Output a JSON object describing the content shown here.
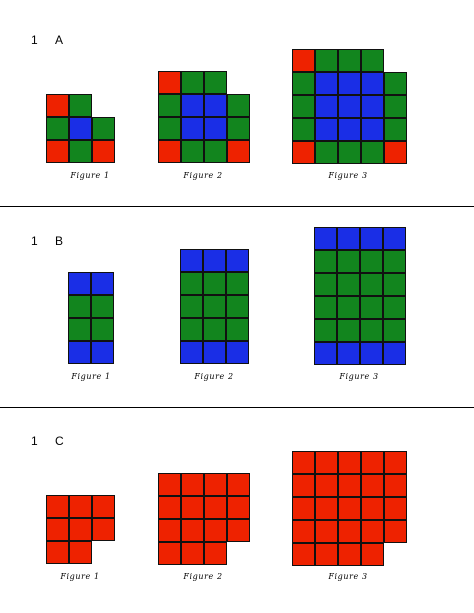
{
  "colors": {
    "R": "#ee2200",
    "G": "#12851e",
    "B": "#1a2ee6"
  },
  "sections": [
    {
      "number": "1",
      "letter": "A",
      "figures": [
        {
          "caption": "Figure 1",
          "rows": [
            "RG.",
            "GBG",
            "RGR"
          ]
        },
        {
          "caption": "Figure 2",
          "rows": [
            "RGG.",
            "GBBG",
            "GBBG",
            "RGGR"
          ]
        },
        {
          "caption": "Figure 3",
          "rows": [
            "RGGG.",
            "GBBBG",
            "GBBBG",
            "GBBBG",
            "RGGGR"
          ]
        }
      ]
    },
    {
      "number": "1",
      "letter": "B",
      "figures": [
        {
          "caption": "Figure 1",
          "rows": [
            "BB",
            "GG",
            "GG",
            "BB"
          ]
        },
        {
          "caption": "Figure 2",
          "rows": [
            "BBB",
            "GGG",
            "GGG",
            "GGG",
            "BBB"
          ]
        },
        {
          "caption": "Figure 3",
          "rows": [
            "BBBB",
            "GGGG",
            "GGGG",
            "GGGG",
            "GGGG",
            "BBBB"
          ]
        }
      ]
    },
    {
      "number": "1",
      "letter": "C",
      "figures": [
        {
          "caption": "Figure 1",
          "rows": [
            "RRR",
            "RRR",
            "RR."
          ]
        },
        {
          "caption": "Figure 2",
          "rows": [
            "RRRR",
            "RRRR",
            "RRRR",
            "RRR."
          ]
        },
        {
          "caption": "Figure 3",
          "rows": [
            "RRRRR",
            "RRRRR",
            "RRRRR",
            "RRRRR",
            "RRRR."
          ]
        }
      ]
    }
  ]
}
